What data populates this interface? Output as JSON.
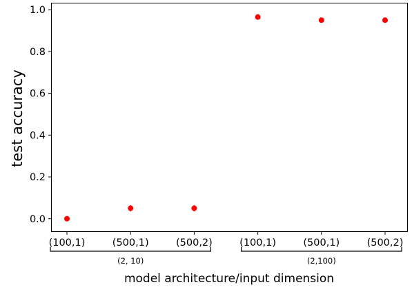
{
  "chart_data": {
    "type": "scatter",
    "categories": [
      "(100,1)",
      "(500,1)",
      "(500,2)",
      "(100,1)",
      "(500,1)",
      "(500,2)"
    ],
    "groups": [
      {
        "label": "(2, 10)",
        "categories": [
          0,
          1,
          2
        ]
      },
      {
        "label": "(2,100)",
        "categories": [
          3,
          4,
          5
        ]
      }
    ],
    "values": [
      0.0,
      0.05,
      0.05,
      0.965,
      0.95,
      0.95
    ],
    "errors": [
      0.0,
      0.015,
      0.015,
      0.005,
      0.005,
      0.005
    ],
    "yticks": [
      "0.0",
      "0.2",
      "0.4",
      "0.6",
      "0.8",
      "1.0"
    ],
    "ytick_values": [
      0.0,
      0.2,
      0.4,
      0.6,
      0.8,
      1.0
    ],
    "ylim": [
      -0.06,
      1.03
    ],
    "xlabel": "model architecture/input dimension",
    "ylabel": "test accuracy",
    "marker_color": "#ff0000",
    "grid": false
  }
}
